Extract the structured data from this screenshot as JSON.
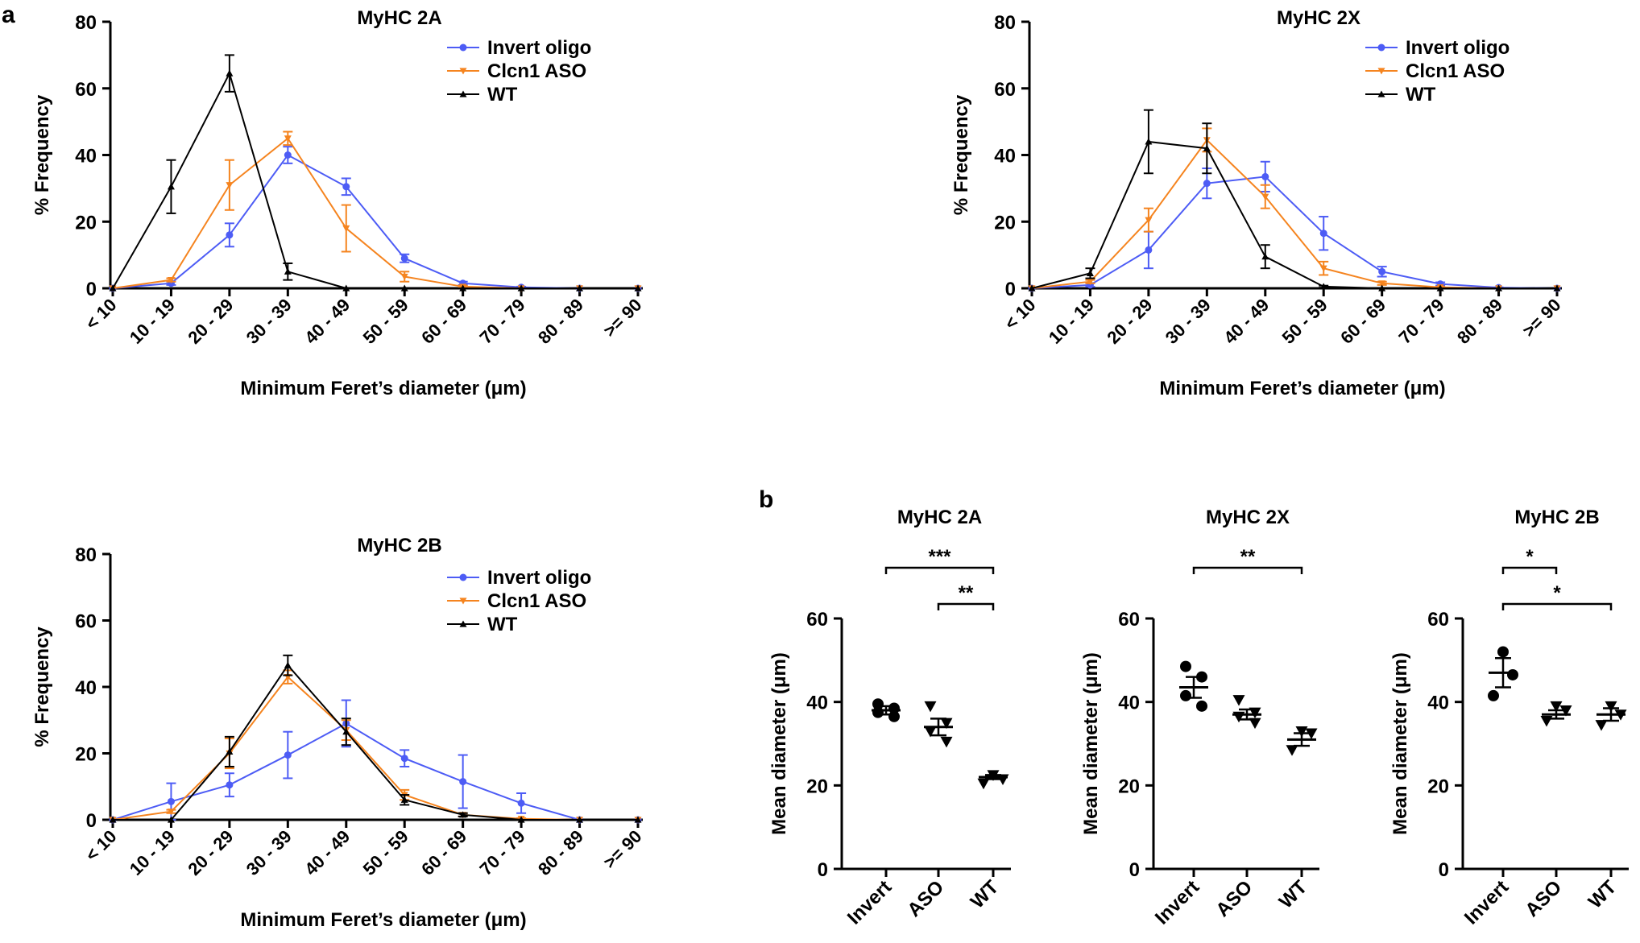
{
  "panel_letters": [
    "a",
    "b"
  ],
  "colors": {
    "invert": "#4d5cf5",
    "aso": "#f5841f",
    "wt": "#000000",
    "axis": "#000000"
  },
  "chart_data": [
    {
      "id": "a1",
      "type": "line",
      "title": "MyHC 2A",
      "xlabel": "Minimum Feret’s diameter (μm)",
      "ylabel": "% Frequency",
      "categories": [
        "< 10",
        "10 - 19",
        "20 - 29",
        "30 - 39",
        "40 - 49",
        "50 - 59",
        "60 - 69",
        "70 - 79",
        "80 - 89",
        ">= 90"
      ],
      "ylim": [
        0,
        80
      ],
      "yticks": [
        0,
        20,
        40,
        60,
        80
      ],
      "legend": "top-right",
      "series": [
        {
          "name": "Invert oligo",
          "key": "invert",
          "marker": "circle",
          "values": [
            0,
            1.5,
            16,
            40,
            30.5,
            9,
            1.5,
            0.3,
            0,
            0
          ],
          "errors": [
            0,
            0.5,
            3.5,
            2.5,
            2.5,
            1.2,
            0.5,
            0.2,
            0,
            0
          ]
        },
        {
          "name": "Clcn1 ASO",
          "key": "aso",
          "marker": "tri-down",
          "values": [
            0,
            2.5,
            31,
            45,
            18,
            3.5,
            0.5,
            0,
            0,
            0
          ],
          "errors": [
            0,
            0.5,
            7.5,
            2,
            7,
            1.5,
            0.3,
            0,
            0,
            0
          ]
        },
        {
          "name": "WT",
          "key": "wt",
          "marker": "tri-up",
          "values": [
            0,
            30.5,
            64.5,
            5,
            0,
            0,
            0,
            0,
            0,
            0
          ],
          "errors": [
            0,
            8,
            5.5,
            2.5,
            0,
            0,
            0,
            0,
            0,
            0
          ]
        }
      ]
    },
    {
      "id": "a2",
      "type": "line",
      "title": "MyHC 2X",
      "xlabel": "Minimum Feret’s diameter (μm)",
      "ylabel": "% Frequency",
      "categories": [
        "< 10",
        "10 - 19",
        "20 - 29",
        "30 - 39",
        "40 - 49",
        "50 - 59",
        "60 - 69",
        "70 - 79",
        "80 - 89",
        ">= 90"
      ],
      "ylim": [
        0,
        80
      ],
      "yticks": [
        0,
        20,
        40,
        60,
        80
      ],
      "legend": "top-right",
      "series": [
        {
          "name": "Invert oligo",
          "key": "invert",
          "marker": "circle",
          "values": [
            0,
            1,
            11.5,
            31.5,
            33.5,
            16.5,
            5,
            1.3,
            0.2,
            0
          ],
          "errors": [
            0,
            0.5,
            5.5,
            4.5,
            4.5,
            5,
            1.5,
            0.5,
            0.1,
            0
          ]
        },
        {
          "name": "Clcn1 ASO",
          "key": "aso",
          "marker": "tri-down",
          "values": [
            0,
            2,
            20.5,
            44.5,
            27.5,
            6,
            1.5,
            0.3,
            0,
            0
          ],
          "errors": [
            0,
            0.5,
            3.5,
            3.5,
            3.5,
            2,
            0.5,
            0.2,
            0,
            0
          ]
        },
        {
          "name": "WT",
          "key": "wt",
          "marker": "tri-up",
          "values": [
            0,
            4.5,
            44,
            42,
            9.5,
            0.5,
            0,
            0,
            0,
            0
          ],
          "errors": [
            0,
            1.5,
            9.5,
            7.5,
            3.5,
            0.3,
            0,
            0,
            0,
            0
          ]
        }
      ]
    },
    {
      "id": "a3",
      "type": "line",
      "title": "MyHC 2B",
      "xlabel": "Minimum Feret’s diameter (μm)",
      "ylabel": "% Frequency",
      "categories": [
        "< 10",
        "10 - 19",
        "20 - 29",
        "30 - 39",
        "40 - 49",
        "50 - 59",
        "60 - 69",
        "70 - 79",
        "80 - 89",
        ">= 90"
      ],
      "ylim": [
        0,
        80
      ],
      "yticks": [
        0,
        20,
        40,
        60,
        80
      ],
      "legend": "top-right",
      "series": [
        {
          "name": "Invert oligo",
          "key": "invert",
          "marker": "circle",
          "values": [
            0,
            5.5,
            10.5,
            19.5,
            29,
            18.5,
            11.5,
            5,
            0,
            0
          ],
          "errors": [
            0,
            5.5,
            3.5,
            7,
            7,
            2.5,
            8,
            3,
            0,
            0
          ]
        },
        {
          "name": "Clcn1 ASO",
          "key": "aso",
          "marker": "tri-down",
          "values": [
            0,
            2.5,
            20,
            43,
            27,
            7.5,
            1.5,
            0.3,
            0,
            0
          ],
          "errors": [
            0,
            0.5,
            4.5,
            2,
            3,
            1.5,
            0.5,
            0.2,
            0,
            0
          ]
        },
        {
          "name": "WT",
          "key": "wt",
          "marker": "tri-up",
          "values": [
            0,
            0,
            20.5,
            46.5,
            26.5,
            6,
            1.5,
            0,
            0,
            0
          ],
          "errors": [
            0,
            0,
            4.5,
            3,
            4,
            1.5,
            0.5,
            0,
            0,
            0
          ]
        }
      ]
    },
    {
      "id": "b1",
      "type": "scatter",
      "title": "MyHC 2A",
      "ylabel": "Mean diameter (μm)",
      "categories": [
        "Invert",
        "ASO",
        "WT"
      ],
      "ylim": [
        0,
        60
      ],
      "yticks": [
        0,
        20,
        40,
        60
      ],
      "groups": [
        {
          "name": "Invert",
          "marker": "circle",
          "points": [
            39.5,
            38.5,
            37.5,
            36.5
          ],
          "mean": 38,
          "sem": 1
        },
        {
          "name": "ASO",
          "marker": "tri-down",
          "points": [
            39,
            35,
            33,
            30.5
          ],
          "mean": 34,
          "sem": 2
        },
        {
          "name": "WT",
          "marker": "tri-down",
          "points": [
            22.5,
            21.5,
            20.5
          ],
          "mean": 22,
          "sem": 0.5
        }
      ],
      "significance": [
        {
          "from": 0,
          "to": 2,
          "label": "***",
          "level": 0
        },
        {
          "from": 1,
          "to": 2,
          "label": "**",
          "level": 1
        }
      ]
    },
    {
      "id": "b2",
      "type": "scatter",
      "title": "MyHC 2X",
      "ylabel": "Mean diameter (μm)",
      "categories": [
        "Invert",
        "ASO",
        "WT"
      ],
      "ylim": [
        0,
        60
      ],
      "yticks": [
        0,
        20,
        40,
        60
      ],
      "groups": [
        {
          "name": "Invert",
          "marker": "circle",
          "points": [
            48.5,
            46,
            41.5,
            39
          ],
          "mean": 43.5,
          "sem": 2.5
        },
        {
          "name": "ASO",
          "marker": "tri-down",
          "points": [
            40.5,
            37.5,
            36.5,
            35
          ],
          "mean": 37,
          "sem": 1.2
        },
        {
          "name": "WT",
          "marker": "tri-down",
          "points": [
            33,
            32.5,
            28.5
          ],
          "mean": 31,
          "sem": 1.5
        }
      ],
      "significance": [
        {
          "from": 0,
          "to": 2,
          "label": "**",
          "level": 0
        }
      ]
    },
    {
      "id": "b3",
      "type": "scatter",
      "title": "MyHC 2B",
      "ylabel": "Mean diameter (μm)",
      "categories": [
        "Invert",
        "ASO",
        "WT"
      ],
      "ylim": [
        0,
        60
      ],
      "yticks": [
        0,
        20,
        40,
        60
      ],
      "groups": [
        {
          "name": "Invert",
          "marker": "circle",
          "points": [
            52,
            46.5,
            41.5
          ],
          "mean": 47,
          "sem": 3.5
        },
        {
          "name": "ASO",
          "marker": "tri-down",
          "points": [
            39,
            38,
            35.5
          ],
          "mean": 37,
          "sem": 1
        },
        {
          "name": "WT",
          "marker": "tri-down",
          "points": [
            39,
            37,
            34.5
          ],
          "mean": 37,
          "sem": 1.5
        }
      ],
      "significance": [
        {
          "from": 0,
          "to": 1,
          "label": "*",
          "level": 0
        },
        {
          "from": 0,
          "to": 2,
          "label": "*",
          "level": 1
        }
      ]
    }
  ]
}
